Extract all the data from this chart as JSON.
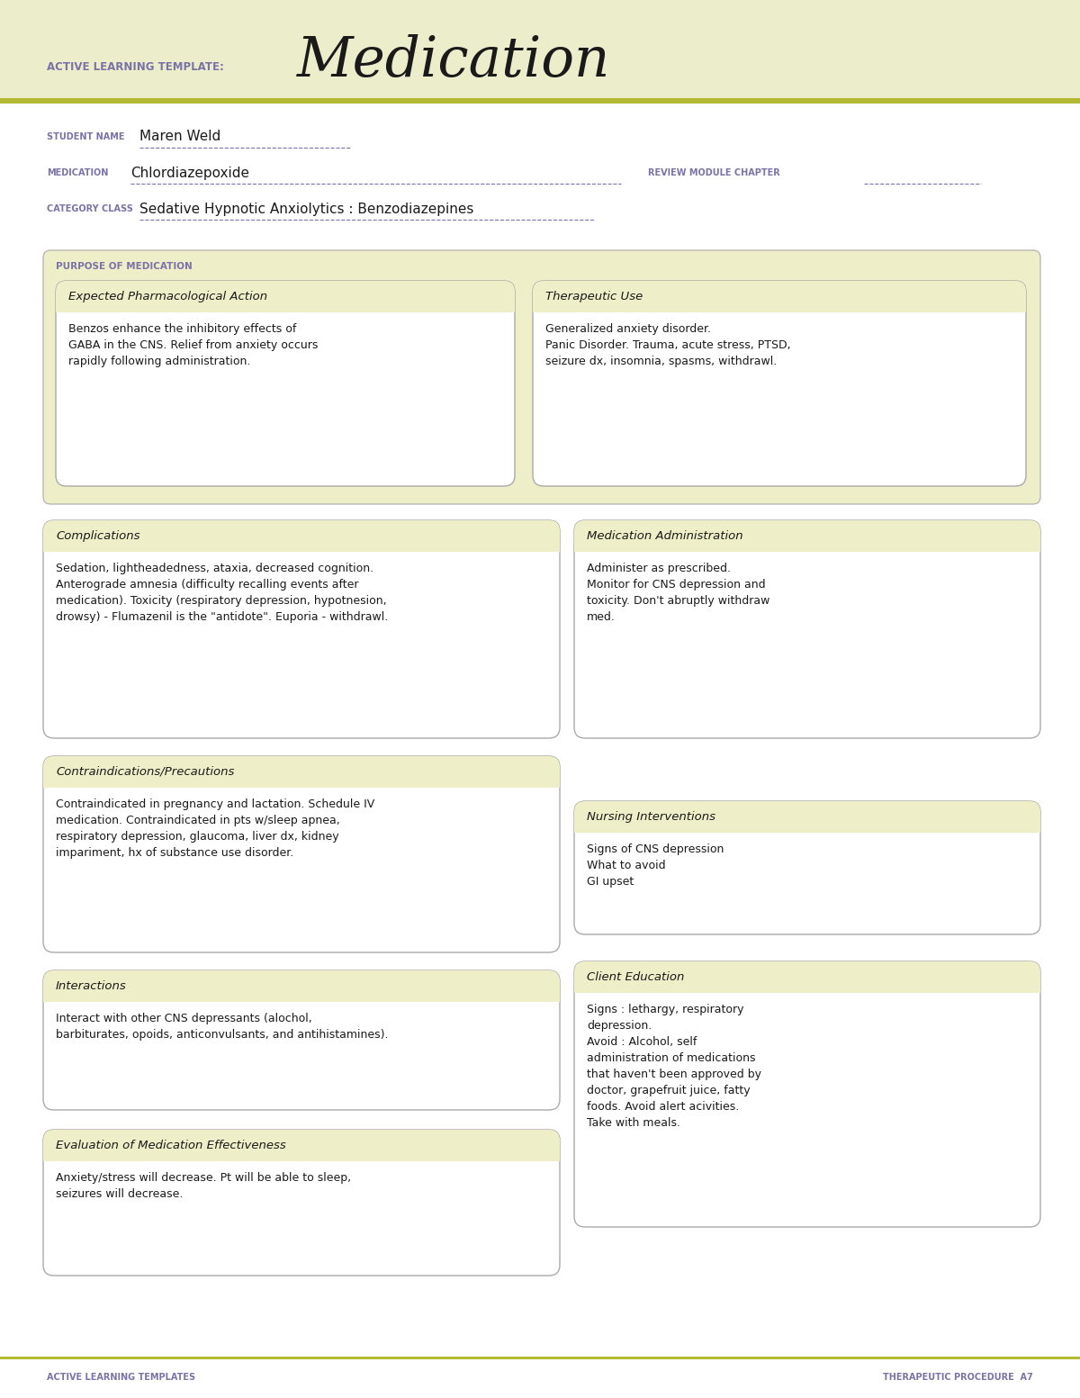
{
  "bg_color": "#f5f5dc",
  "white": "#ffffff",
  "header_bg": "#ecedca",
  "box_bg": "#eeeec8",
  "box_border": "#aaaaaa",
  "olive_line": "#b5b832",
  "purple_label": "#7b72a8",
  "dark_text": "#1a1a1a",
  "title_label": "ACTIVE LEARNING TEMPLATE:",
  "title_main": "Medication",
  "student_label": "STUDENT NAME",
  "student_value": "Maren Weld",
  "medication_label": "MEDICATION",
  "medication_value": "Chlordiazepoxide",
  "review_label": "REVIEW MODULE CHAPTER",
  "category_label": "CATEGORY CLASS",
  "category_value": "Sedative Hypnotic Anxiolytics : Benzodiazepines",
  "purpose_label": "PURPOSE OF MEDICATION",
  "box1_title": "Expected Pharmacological Action",
  "box1_body": "Benzos enhance the inhibitory effects of\nGABA in the CNS. Relief from anxiety occurs\nrapidly following administration.",
  "box2_title": "Therapeutic Use",
  "box2_body": "Generalized anxiety disorder.\nPanic Disorder. Trauma, acute stress, PTSD,\nseizure dx, insomnia, spasms, withdrawl.",
  "box3_title": "Complications",
  "box3_body": "Sedation, lightheadedness, ataxia, decreased cognition.\nAnterograde amnesia (difficulty recalling events after\nmedication). Toxicity (respiratory depression, hypotnesion,\ndrowsy) - Flumazenil is the \"antidote\". Euporia - withdrawl.",
  "box4_title": "Medication Administration",
  "box4_body": "Administer as prescribed.\nMonitor for CNS depression and\ntoxicity. Don't abruptly withdraw\nmed.",
  "box5_title": "Contraindications/Precautions",
  "box5_body": "Contraindicated in pregnancy and lactation. Schedule IV\nmedication. Contraindicated in pts w/sleep apnea,\nrespiratory depression, glaucoma, liver dx, kidney\nimpariment, hx of substance use disorder.",
  "box6_title": "Nursing Interventions",
  "box6_body": "Signs of CNS depression\nWhat to avoid\nGI upset",
  "box7_title": "Interactions",
  "box7_body": "Interact with other CNS depressants (alochol,\nbarbiturates, opoids, anticonvulsants, and antihistamines).",
  "box8_title": "Client Education",
  "box8_body": "Signs : lethargy, respiratory\ndepression.\nAvoid : Alcohol, self\nadministration of medications\nthat haven't been approved by\ndoctor, grapefruit juice, fatty\nfoods. Avoid alert acivities.\nTake with meals.",
  "box9_title": "Evaluation of Medication Effectiveness",
  "box9_body": "Anxiety/stress will decrease. Pt will be able to sleep,\nseizures will decrease.",
  "footer_left": "ACTIVE LEARNING TEMPLATES",
  "footer_right": "THERAPEUTIC PROCEDURE  A7"
}
